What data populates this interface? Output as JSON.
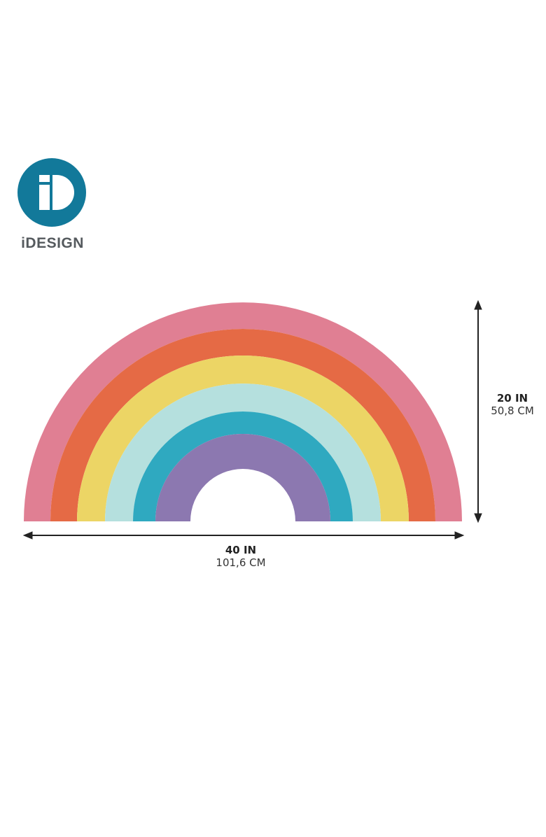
{
  "brand": {
    "name": "iDESIGN",
    "color": "#12799a"
  },
  "product": {
    "bands": [
      {
        "color": "#e07f93"
      },
      {
        "color": "#e56a45"
      },
      {
        "color": "#ecd565"
      },
      {
        "color": "#b5e0de"
      },
      {
        "color": "#2fa9c0"
      },
      {
        "color": "#8c78b0"
      }
    ]
  },
  "dimensions": {
    "width": {
      "imperial": "40 IN",
      "metric": "101,6 CM"
    },
    "height": {
      "imperial": "20 IN",
      "metric": "50,8 CM"
    }
  }
}
